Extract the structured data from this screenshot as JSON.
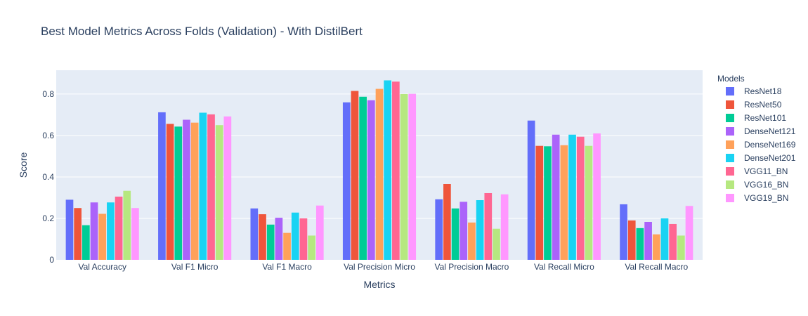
{
  "chart_data": {
    "type": "bar",
    "title": "Best Model Metrics Across Folds (Validation) - With DistilBert",
    "xlabel": "Metrics",
    "ylabel": "Score",
    "ylim": [
      0,
      0.915
    ],
    "yticks": [
      0,
      0.2,
      0.4,
      0.6,
      0.8
    ],
    "ytick_labels": [
      "0",
      "0.2",
      "0.4",
      "0.6",
      "0.8"
    ],
    "grid": true,
    "legend": {
      "title": "Models",
      "placement": "right"
    },
    "categories": [
      "Val Accuracy",
      "Val F1 Micro",
      "Val F1 Macro",
      "Val Precision Micro",
      "Val Precision Macro",
      "Val Recall Micro",
      "Val Recall Macro"
    ],
    "series": [
      {
        "name": "ResNet18",
        "color": "#636efa",
        "values": [
          0.29,
          0.712,
          0.248,
          0.76,
          0.292,
          0.672,
          0.268
        ]
      },
      {
        "name": "ResNet50",
        "color": "#EF553B",
        "values": [
          0.25,
          0.656,
          0.22,
          0.815,
          0.366,
          0.55,
          0.19
        ]
      },
      {
        "name": "ResNet101",
        "color": "#00cc96",
        "values": [
          0.167,
          0.643,
          0.17,
          0.787,
          0.248,
          0.548,
          0.153
        ]
      },
      {
        "name": "DenseNet121",
        "color": "#ab63fa",
        "values": [
          0.277,
          0.676,
          0.203,
          0.77,
          0.28,
          0.604,
          0.183
        ]
      },
      {
        "name": "DenseNet169",
        "color": "#FFA15A",
        "values": [
          0.222,
          0.662,
          0.13,
          0.825,
          0.18,
          0.553,
          0.123
        ]
      },
      {
        "name": "DenseNet201",
        "color": "#19d3f3",
        "values": [
          0.277,
          0.71,
          0.228,
          0.866,
          0.288,
          0.604,
          0.2
        ]
      },
      {
        "name": "VGG11_BN",
        "color": "#FF6692",
        "values": [
          0.305,
          0.702,
          0.2,
          0.86,
          0.322,
          0.594,
          0.173
        ]
      },
      {
        "name": "VGG16_BN",
        "color": "#B6E880",
        "values": [
          0.333,
          0.65,
          0.117,
          0.8,
          0.15,
          0.55,
          0.117
        ]
      },
      {
        "name": "VGG19_BN",
        "color": "#FF97FF",
        "values": [
          0.25,
          0.692,
          0.262,
          0.801,
          0.316,
          0.61,
          0.26
        ]
      }
    ]
  }
}
